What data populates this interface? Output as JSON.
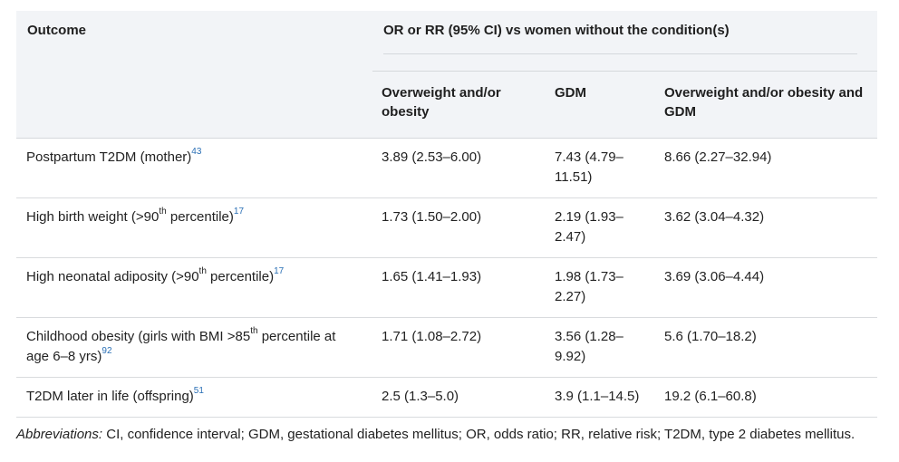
{
  "table": {
    "header": {
      "outcome": "Outcome",
      "group": "OR or RR (95% CI) vs women without the condition(s)",
      "col_overweight": "Overweight and/or obesity",
      "col_gdm": "GDM",
      "col_both": "Overweight and/or obesity and GDM"
    },
    "rows": [
      {
        "pre": "Postpartum T2DM (mother)",
        "sup1": "",
        "post": "",
        "ref": "43",
        "overweight": "3.89 (2.53–6.00)",
        "gdm": "7.43 (4.79–11.51)",
        "both": "8.66 (2.27–32.94)"
      },
      {
        "pre": "High birth weight (>90",
        "sup1": "th",
        "post": " percentile)",
        "ref": "17",
        "overweight": "1.73 (1.50–2.00)",
        "gdm": "2.19 (1.93–2.47)",
        "both": "3.62 (3.04–4.32)"
      },
      {
        "pre": "High neonatal adiposity (>90",
        "sup1": "th",
        "post": " percentile)",
        "ref": "17",
        "overweight": "1.65 (1.41–1.93)",
        "gdm": "1.98 (1.73–2.27)",
        "both": "3.69 (3.06–4.44)"
      },
      {
        "pre": "Childhood obesity (girls with BMI >85",
        "sup1": "th",
        "post": " percentile at age 6–8 yrs)",
        "ref": "92",
        "overweight": "1.71 (1.08–2.72)",
        "gdm": "3.56 (1.28–9.92)",
        "both": "5.6 (1.70–18.2)"
      },
      {
        "pre": "T2DM later in life (offspring)",
        "sup1": "",
        "post": "",
        "ref": "51",
        "overweight": "2.5 (1.3–5.0)",
        "gdm": "3.9 (1.1–14.5)",
        "both": "19.2 (6.1–60.8)"
      }
    ]
  },
  "footnote": {
    "label": "Abbreviations:",
    "text": " CI, confidence interval; GDM, gestational diabetes mellitus; OR, odds ratio; RR, relative risk; T2DM, type 2 diabetes mellitus."
  }
}
